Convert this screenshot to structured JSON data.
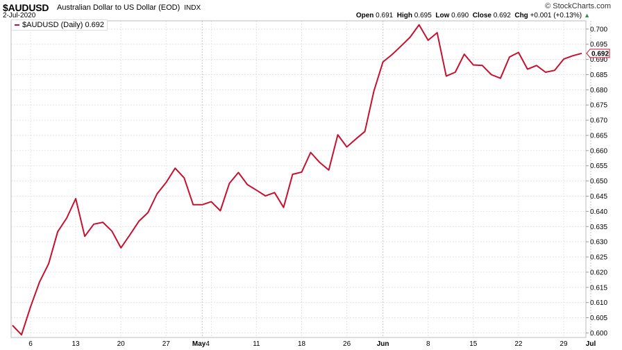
{
  "header": {
    "symbol": "$AUDUSD",
    "name": "Australian Dollar to US Dollar (EOD)",
    "exchange": "INDX",
    "date": "2-Jul-2020",
    "brand": "© StockCharts.com",
    "open_label": "Open",
    "open_value": "0.691",
    "high_label": "High",
    "high_value": "0.695",
    "low_label": "Low",
    "low_value": "0.690",
    "close_label": "Close",
    "close_value": "0.692",
    "chg_label": "Chg",
    "chg_value": "+0.001 (+0.13%)",
    "chg_icon": "up-triangle-icon"
  },
  "legend": {
    "label": "$AUDUSD (Daily) 0.692",
    "color": "#c8102e"
  },
  "chart_data": {
    "type": "line",
    "ylim": [
      0.5985,
      0.7027
    ],
    "yticks": [
      "0.600",
      "0.605",
      "0.610",
      "0.615",
      "0.620",
      "0.625",
      "0.630",
      "0.635",
      "0.640",
      "0.645",
      "0.650",
      "0.655",
      "0.660",
      "0.665",
      "0.670",
      "0.675",
      "0.680",
      "0.685",
      "0.690",
      "0.695",
      "0.700"
    ],
    "xticks": [
      {
        "label": "6",
        "index": 2
      },
      {
        "label": "13",
        "index": 7
      },
      {
        "label": "20",
        "index": 12
      },
      {
        "label": "27",
        "index": 17
      },
      {
        "label": "May",
        "index": 21
      },
      {
        "label": "4",
        "index": 22
      },
      {
        "label": "11",
        "index": 27
      },
      {
        "label": "18",
        "index": 32
      },
      {
        "label": "26",
        "index": 37
      },
      {
        "label": "Jun",
        "index": 41
      },
      {
        "label": "8",
        "index": 46
      },
      {
        "label": "15",
        "index": 51
      },
      {
        "label": "22",
        "index": 56
      },
      {
        "label": "29",
        "index": 61
      },
      {
        "label": "Jul",
        "index": 64
      }
    ],
    "month_separators": [
      21,
      41,
      64
    ],
    "last_value_label": "0.692",
    "series": [
      {
        "color": "#c8102e",
        "values": [
          0.6025,
          0.5994,
          0.6086,
          0.6168,
          0.6228,
          0.6333,
          0.6378,
          0.6442,
          0.6318,
          0.6358,
          0.6364,
          0.6335,
          0.628,
          0.6323,
          0.6368,
          0.6396,
          0.6458,
          0.6495,
          0.6542,
          0.651,
          0.6422,
          0.6422,
          0.6432,
          0.6402,
          0.6492,
          0.6528,
          0.6488,
          0.647,
          0.6451,
          0.6462,
          0.6413,
          0.6522,
          0.6529,
          0.6594,
          0.6561,
          0.6536,
          0.6652,
          0.6612,
          0.6638,
          0.6663,
          0.6796,
          0.6892,
          0.6916,
          0.6944,
          0.6973,
          0.7014,
          0.6963,
          0.6988,
          0.6845,
          0.6858,
          0.6917,
          0.6882,
          0.688,
          0.685,
          0.6838,
          0.6908,
          0.6923,
          0.6868,
          0.688,
          0.6858,
          0.6864,
          0.6901,
          0.6912,
          0.692
        ]
      }
    ]
  }
}
